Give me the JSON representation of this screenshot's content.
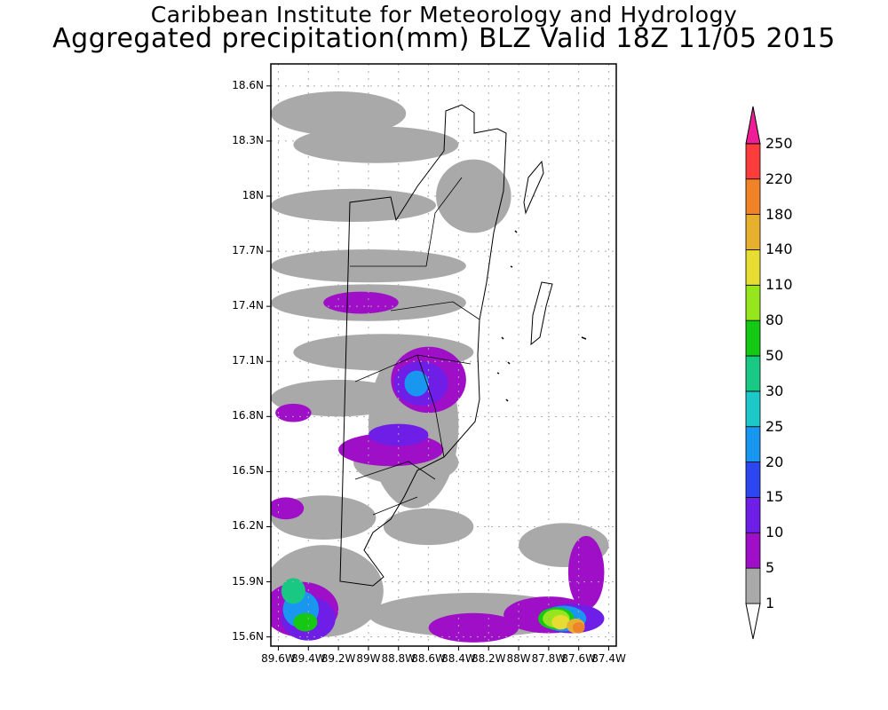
{
  "header": {
    "institution": "Caribbean Institute for Meteorology and Hydrology",
    "product": "Aggregated precipitation(mm) BLZ Valid 18Z 11/05 2015"
  },
  "chart_data": {
    "type": "heatmap",
    "title": "Aggregated precipitation(mm) BLZ Valid 18Z 11/05 2015",
    "subtitle": "Caribbean Institute for Meteorology and Hydrology",
    "xlim": [
      -89.65,
      -87.35
    ],
    "ylim": [
      15.55,
      18.72
    ],
    "x_ticks": [
      {
        "value": -89.6,
        "label": "89.6W"
      },
      {
        "value": -89.4,
        "label": "89.4W"
      },
      {
        "value": -89.2,
        "label": "89.2W"
      },
      {
        "value": -89.0,
        "label": "89W"
      },
      {
        "value": -88.8,
        "label": "88.8W"
      },
      {
        "value": -88.6,
        "label": "88.6W"
      },
      {
        "value": -88.4,
        "label": "88.4W"
      },
      {
        "value": -88.2,
        "label": "88.2W"
      },
      {
        "value": -88.0,
        "label": "88W"
      },
      {
        "value": -87.8,
        "label": "87.8W"
      },
      {
        "value": -87.6,
        "label": "87.6W"
      },
      {
        "value": -87.4,
        "label": "87.4W"
      }
    ],
    "y_ticks": [
      {
        "value": 15.6,
        "label": "15.6N"
      },
      {
        "value": 15.9,
        "label": "15.9N"
      },
      {
        "value": 16.2,
        "label": "16.2N"
      },
      {
        "value": 16.5,
        "label": "16.5N"
      },
      {
        "value": 16.8,
        "label": "16.8N"
      },
      {
        "value": 17.1,
        "label": "17.1N"
      },
      {
        "value": 17.4,
        "label": "17.4N"
      },
      {
        "value": 17.7,
        "label": "17.7N"
      },
      {
        "value": 18.0,
        "label": "18N"
      },
      {
        "value": 18.3,
        "label": "18.3N"
      },
      {
        "value": 18.6,
        "label": "18.6N"
      }
    ],
    "grid": true,
    "legend": {
      "placement": "right",
      "levels": [
        "1",
        "5",
        "10",
        "15",
        "20",
        "25",
        "30",
        "50",
        "80",
        "110",
        "140",
        "180",
        "220",
        "250"
      ],
      "colors": [
        "#a9a9a9",
        "#a00fc8",
        "#6e1ee6",
        "#2d46f0",
        "#1996f0",
        "#1ec8c8",
        "#19c882",
        "#14c814",
        "#96e61e",
        "#e6dc32",
        "#e6af2d",
        "#f08228",
        "#fa3c3c",
        "#f01e96"
      ]
    },
    "fields": [
      {
        "level": 1,
        "lon": -89.2,
        "lat": 18.45,
        "rx": 0.45,
        "ry": 0.12
      },
      {
        "level": 1,
        "lon": -88.95,
        "lat": 18.28,
        "rx": 0.55,
        "ry": 0.1
      },
      {
        "level": 1,
        "lon": -89.1,
        "lat": 17.95,
        "rx": 0.55,
        "ry": 0.09
      },
      {
        "level": 1,
        "lon": -89.0,
        "lat": 17.62,
        "rx": 0.65,
        "ry": 0.09
      },
      {
        "level": 1,
        "lon": -89.0,
        "lat": 17.42,
        "rx": 0.65,
        "ry": 0.1
      },
      {
        "level": 1,
        "lon": -88.9,
        "lat": 17.15,
        "rx": 0.6,
        "ry": 0.1
      },
      {
        "level": 1,
        "lon": -89.2,
        "lat": 16.9,
        "rx": 0.45,
        "ry": 0.1
      },
      {
        "level": 1,
        "lon": -88.7,
        "lat": 16.75,
        "rx": 0.3,
        "ry": 0.45
      },
      {
        "level": 1,
        "lon": -88.75,
        "lat": 16.55,
        "rx": 0.35,
        "ry": 0.12
      },
      {
        "level": 1,
        "lon": -89.3,
        "lat": 16.25,
        "rx": 0.35,
        "ry": 0.12
      },
      {
        "level": 1,
        "lon": -88.3,
        "lat": 18.0,
        "rx": 0.25,
        "ry": 0.2
      },
      {
        "level": 1,
        "lon": -88.6,
        "lat": 16.2,
        "rx": 0.3,
        "ry": 0.1
      },
      {
        "level": 1,
        "lon": -87.7,
        "lat": 16.1,
        "rx": 0.3,
        "ry": 0.12
      },
      {
        "level": 1,
        "lon": -88.3,
        "lat": 15.72,
        "rx": 0.7,
        "ry": 0.12
      },
      {
        "level": 1,
        "lon": -89.3,
        "lat": 15.85,
        "rx": 0.4,
        "ry": 0.25
      },
      {
        "level": 5,
        "lon": -89.05,
        "lat": 17.42,
        "rx": 0.25,
        "ry": 0.06
      },
      {
        "level": 5,
        "lon": -88.6,
        "lat": 17.0,
        "rx": 0.25,
        "ry": 0.18
      },
      {
        "level": 5,
        "lon": -88.85,
        "lat": 16.62,
        "rx": 0.35,
        "ry": 0.09
      },
      {
        "level": 5,
        "lon": -89.5,
        "lat": 16.82,
        "rx": 0.12,
        "ry": 0.05
      },
      {
        "level": 5,
        "lon": -89.55,
        "lat": 16.3,
        "rx": 0.12,
        "ry": 0.06
      },
      {
        "level": 5,
        "lon": -87.55,
        "lat": 15.95,
        "rx": 0.12,
        "ry": 0.2
      },
      {
        "level": 5,
        "lon": -87.8,
        "lat": 15.72,
        "rx": 0.3,
        "ry": 0.1
      },
      {
        "level": 5,
        "lon": -88.3,
        "lat": 15.65,
        "rx": 0.3,
        "ry": 0.08
      },
      {
        "level": 5,
        "lon": -89.45,
        "lat": 15.75,
        "rx": 0.25,
        "ry": 0.15
      },
      {
        "level": 10,
        "lon": -88.65,
        "lat": 16.98,
        "rx": 0.18,
        "ry": 0.12
      },
      {
        "level": 10,
        "lon": -88.8,
        "lat": 16.7,
        "rx": 0.2,
        "ry": 0.06
      },
      {
        "level": 10,
        "lon": -89.4,
        "lat": 15.7,
        "rx": 0.18,
        "ry": 0.12
      },
      {
        "level": 10,
        "lon": -87.65,
        "lat": 15.7,
        "rx": 0.22,
        "ry": 0.08
      },
      {
        "level": 20,
        "lon": -88.68,
        "lat": 16.98,
        "rx": 0.08,
        "ry": 0.07
      },
      {
        "level": 20,
        "lon": -89.45,
        "lat": 15.75,
        "rx": 0.12,
        "ry": 0.1
      },
      {
        "level": 20,
        "lon": -87.7,
        "lat": 15.7,
        "rx": 0.15,
        "ry": 0.07
      },
      {
        "level": 30,
        "lon": -89.5,
        "lat": 15.85,
        "rx": 0.08,
        "ry": 0.07
      },
      {
        "level": 50,
        "lon": -89.42,
        "lat": 15.68,
        "rx": 0.08,
        "ry": 0.05
      },
      {
        "level": 50,
        "lon": -87.75,
        "lat": 15.7,
        "rx": 0.12,
        "ry": 0.06
      },
      {
        "level": 80,
        "lon": -87.75,
        "lat": 15.7,
        "rx": 0.09,
        "ry": 0.05
      },
      {
        "level": 110,
        "lon": -87.72,
        "lat": 15.68,
        "rx": 0.06,
        "ry": 0.04
      },
      {
        "level": 140,
        "lon": -87.62,
        "lat": 15.66,
        "rx": 0.06,
        "ry": 0.04
      },
      {
        "level": 180,
        "lon": -87.6,
        "lat": 15.65,
        "rx": 0.04,
        "ry": 0.03
      }
    ]
  }
}
